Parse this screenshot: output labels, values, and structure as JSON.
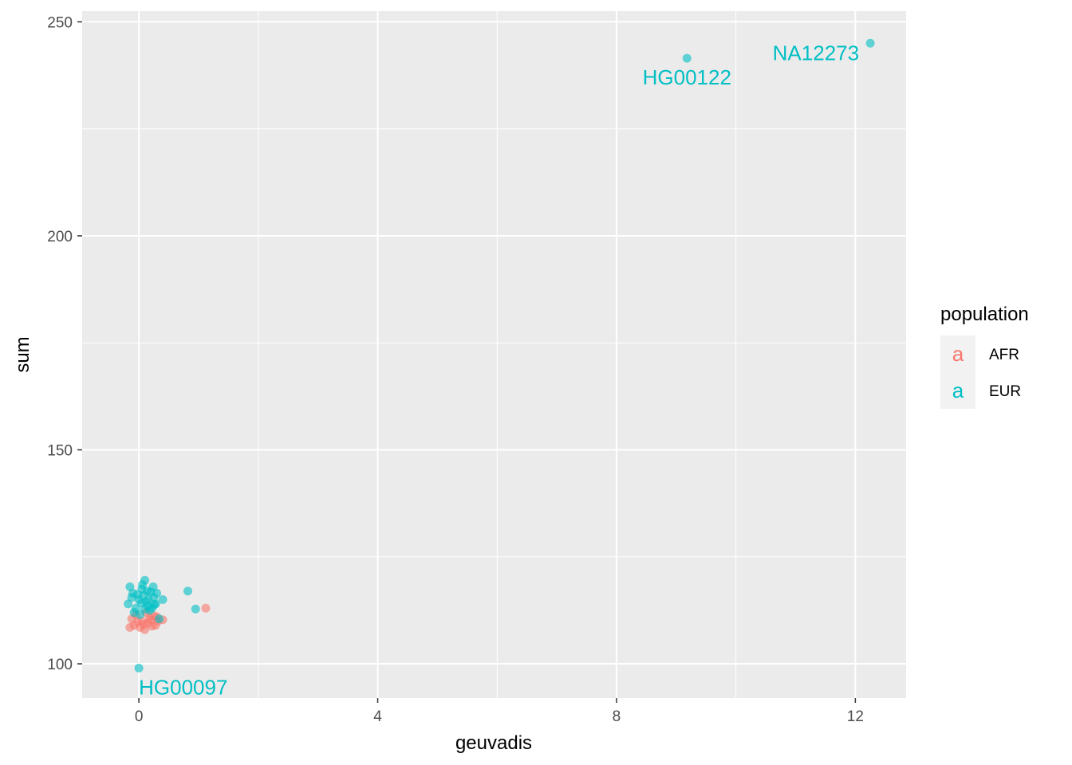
{
  "chart_data": {
    "type": "scatter",
    "title": "",
    "xlabel": "geuvadis",
    "ylabel": "sum",
    "xlim": [
      -0.95,
      12.85
    ],
    "ylim": [
      92,
      252.5
    ],
    "x_ticks": [
      0,
      4,
      8,
      12
    ],
    "y_ticks": [
      100,
      150,
      200,
      250
    ],
    "grid": true,
    "legend": {
      "title": "population",
      "placement": "right",
      "key_glyph": "a"
    },
    "series": [
      {
        "name": "AFR",
        "color": "#F8766D",
        "points": [
          [
            -0.15,
            108.5
          ],
          [
            -0.08,
            109.0
          ],
          [
            0.02,
            108.5
          ],
          [
            0.1,
            108.0
          ],
          [
            0.15,
            109.5
          ],
          [
            0.22,
            108.8
          ],
          [
            0.28,
            109.0
          ],
          [
            -0.12,
            110.5
          ],
          [
            0.05,
            110.0
          ],
          [
            0.18,
            110.8
          ],
          [
            0.32,
            110.0
          ],
          [
            0.4,
            110.3
          ],
          [
            0.25,
            111.2
          ],
          [
            -0.05,
            111.5
          ],
          [
            0.12,
            112.0
          ],
          [
            0.08,
            109.2
          ],
          [
            0.3,
            111.0
          ],
          [
            -0.02,
            109.8
          ],
          [
            0.2,
            110.2
          ],
          [
            1.12,
            113.0
          ]
        ]
      },
      {
        "name": "EUR",
        "color": "#00BFC4",
        "points": [
          [
            -0.15,
            118.0
          ],
          [
            -0.1,
            116.5
          ],
          [
            -0.18,
            114.0
          ],
          [
            -0.05,
            113.0
          ],
          [
            0.0,
            115.0
          ],
          [
            0.05,
            117.5
          ],
          [
            0.1,
            119.5
          ],
          [
            0.08,
            116.0
          ],
          [
            0.12,
            114.5
          ],
          [
            0.15,
            113.5
          ],
          [
            0.2,
            116.8
          ],
          [
            0.25,
            115.5
          ],
          [
            0.3,
            116.5
          ],
          [
            0.28,
            114.0
          ],
          [
            0.18,
            112.5
          ],
          [
            0.02,
            111.5
          ],
          [
            -0.08,
            112.0
          ],
          [
            0.22,
            113.0
          ],
          [
            0.06,
            118.5
          ],
          [
            -0.12,
            115.5
          ],
          [
            0.14,
            117.0
          ],
          [
            0.24,
            118.0
          ],
          [
            0.1,
            112.8
          ],
          [
            -0.02,
            116.2
          ],
          [
            0.16,
            115.0
          ],
          [
            0.04,
            114.2
          ],
          [
            0.26,
            113.8
          ],
          [
            0.34,
            110.5
          ],
          [
            0.4,
            115.0
          ],
          [
            0.82,
            117.0
          ],
          [
            0.95,
            112.8
          ],
          [
            0.0,
            99.0
          ],
          [
            9.18,
            241.5
          ],
          [
            12.25,
            245.0
          ]
        ]
      }
    ],
    "annotations": [
      {
        "text": "NA12273",
        "x": 12.25,
        "y": 245.0,
        "color": "#00BFC4",
        "anchor": "end",
        "offset": "left-below"
      },
      {
        "text": "HG00122",
        "x": 9.18,
        "y": 241.5,
        "color": "#00BFC4",
        "anchor": "middle",
        "offset": "below"
      },
      {
        "text": "HG00097",
        "x": 0.0,
        "y": 99.0,
        "color": "#00BFC4",
        "anchor": "start",
        "offset": "below"
      }
    ]
  }
}
